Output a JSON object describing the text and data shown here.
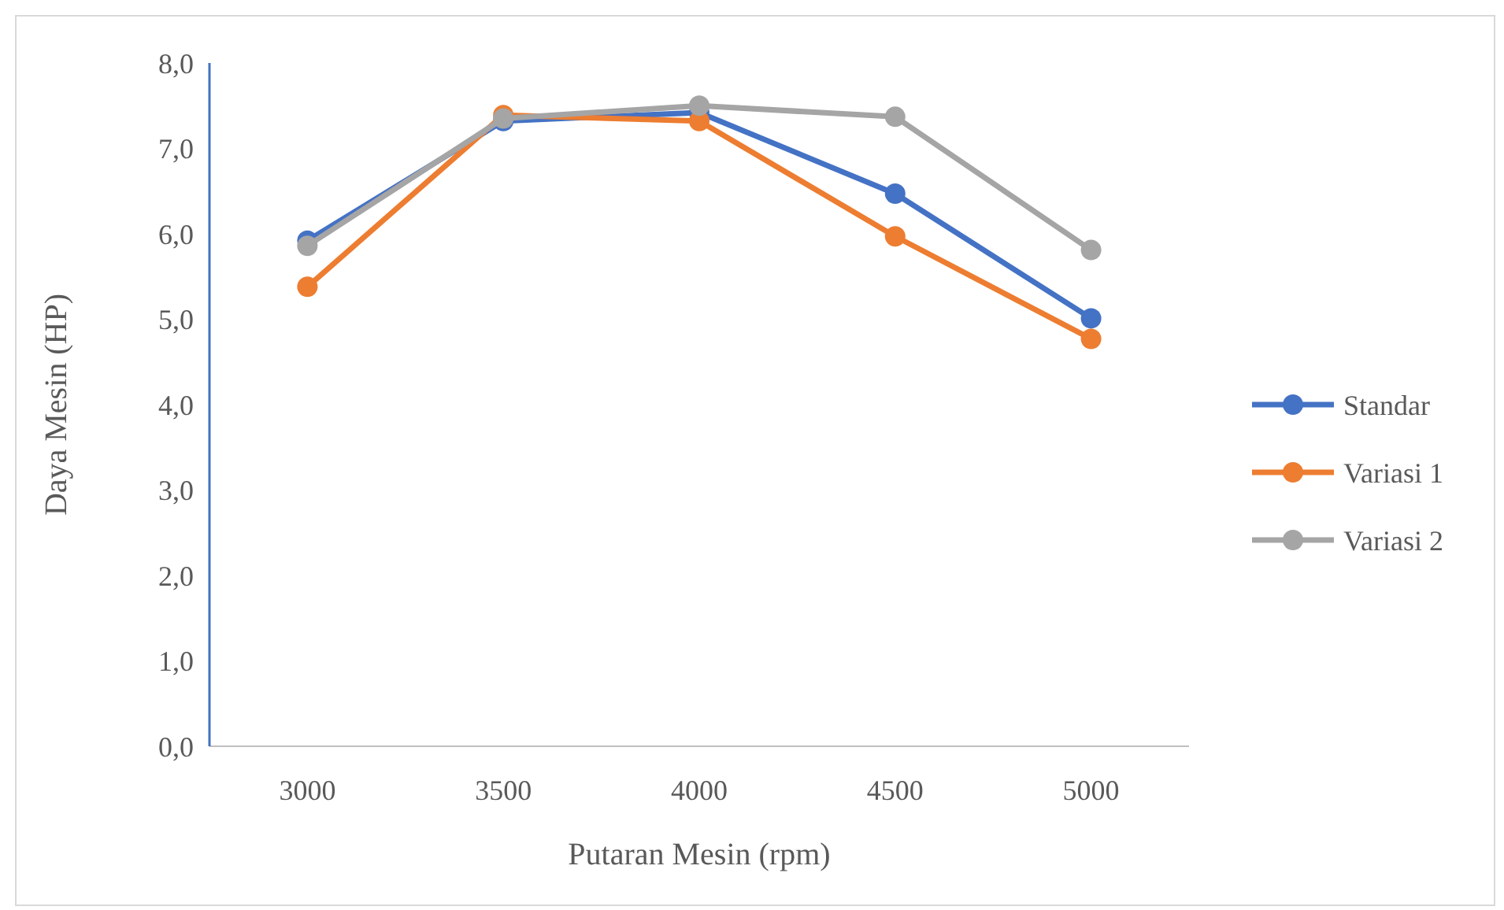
{
  "chart_data": {
    "type": "line",
    "xlabel": "Putaran Mesin (rpm)",
    "ylabel": "Daya Mesin (HP)",
    "categories": [
      "3000",
      "3500",
      "4000",
      "4500",
      "5000"
    ],
    "ylim": [
      0,
      8
    ],
    "yticks": [
      {
        "value": 0,
        "label": "0,0"
      },
      {
        "value": 1,
        "label": "1,0"
      },
      {
        "value": 2,
        "label": "2,0"
      },
      {
        "value": 3,
        "label": "3,0"
      },
      {
        "value": 4,
        "label": "4,0"
      },
      {
        "value": 5,
        "label": "5,0"
      },
      {
        "value": 6,
        "label": "6,0"
      },
      {
        "value": 7,
        "label": "7,0"
      },
      {
        "value": 8,
        "label": "8,0"
      }
    ],
    "series": [
      {
        "name": "Standar",
        "color": "#4472c4",
        "values": [
          5.92,
          7.32,
          7.42,
          6.47,
          5.01
        ]
      },
      {
        "name": "Variasi 1",
        "color": "#ed7d31",
        "values": [
          5.38,
          7.39,
          7.32,
          5.97,
          4.77
        ]
      },
      {
        "name": "Variasi 2",
        "color": "#a5a5a5",
        "values": [
          5.86,
          7.35,
          7.5,
          7.37,
          5.81
        ]
      }
    ],
    "grid": false,
    "legend": "right",
    "marker": "circle",
    "line_style": "solid"
  }
}
